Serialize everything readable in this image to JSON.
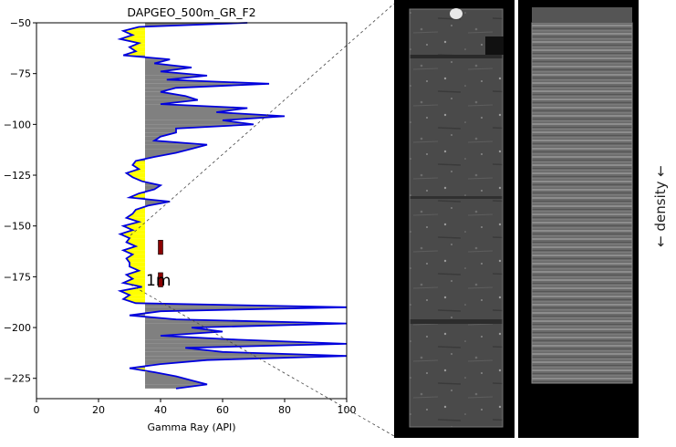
{
  "chart_data": {
    "type": "line",
    "title": "DAPGEO_500m_GR_F2",
    "xlabel": "Gamma Ray (API)",
    "ylabel": "",
    "xlim": [
      0,
      100
    ],
    "ylim": [
      -235,
      -50
    ],
    "x_ticks": [
      0,
      20,
      40,
      60,
      80,
      100
    ],
    "y_ticks": [
      -50,
      -75,
      -100,
      -125,
      -150,
      -175,
      -200,
      -225
    ],
    "grid": false,
    "cutoff_gr": 35,
    "fill_colors": {
      "below_cutoff": "#ffff00",
      "above_cutoff": "#808080"
    },
    "series": [
      {
        "line_color": "#0000dd",
        "depth": [
          -50,
          -52,
          -54,
          -56,
          -58,
          -60,
          -62,
          -64,
          -66,
          -68,
          -70,
          -72,
          -74,
          -76,
          -78,
          -80,
          -82,
          -84,
          -86,
          -88,
          -90,
          -92,
          -94,
          -96,
          -98,
          -100,
          -102,
          -104,
          -106,
          -108,
          -110,
          -112,
          -114,
          -116,
          -118,
          -120,
          -122,
          -124,
          -126,
          -128,
          -130,
          -132,
          -134,
          -136,
          -138,
          -140,
          -142,
          -144,
          -146,
          -148,
          -150,
          -152,
          -154,
          -156,
          -158,
          -160,
          -162,
          -164,
          -166,
          -168,
          -170,
          -172,
          -174,
          -176,
          -178,
          -180,
          -182,
          -184,
          -186,
          -188,
          -190,
          -192,
          -194,
          -196,
          -198,
          -200,
          -202,
          -204,
          -206,
          -208,
          -210,
          -212,
          -214,
          -216,
          -218,
          -220,
          -222,
          -224,
          -226,
          -228,
          -230
        ],
        "gr": [
          68,
          33,
          28,
          31,
          27,
          33,
          30,
          32,
          28,
          43,
          38,
          50,
          40,
          55,
          42,
          75,
          45,
          40,
          48,
          52,
          40,
          68,
          58,
          80,
          60,
          70,
          45,
          45,
          40,
          38,
          55,
          50,
          45,
          38,
          32,
          31,
          33,
          29,
          31,
          34,
          40,
          38,
          33,
          30,
          43,
          36,
          32,
          31,
          29,
          33,
          28,
          31,
          27,
          30,
          29,
          32,
          28,
          31,
          29,
          30,
          30,
          33,
          29,
          31,
          28,
          34,
          27,
          30,
          28,
          32,
          100,
          40,
          30,
          45,
          100,
          50,
          60,
          40,
          65,
          100,
          48,
          60,
          100,
          55,
          40,
          30,
          38,
          45,
          50,
          55,
          45
        ]
      }
    ],
    "markers": [
      {
        "depth_top": -157,
        "depth_bottom": -164,
        "gr": 40,
        "color": "#8b0000"
      },
      {
        "depth_top": -173,
        "depth_bottom": -180,
        "gr": 40,
        "color": "#8b0000"
      }
    ],
    "annotations": [
      "1m"
    ]
  },
  "side_labels": {
    "density": "← density ←"
  }
}
